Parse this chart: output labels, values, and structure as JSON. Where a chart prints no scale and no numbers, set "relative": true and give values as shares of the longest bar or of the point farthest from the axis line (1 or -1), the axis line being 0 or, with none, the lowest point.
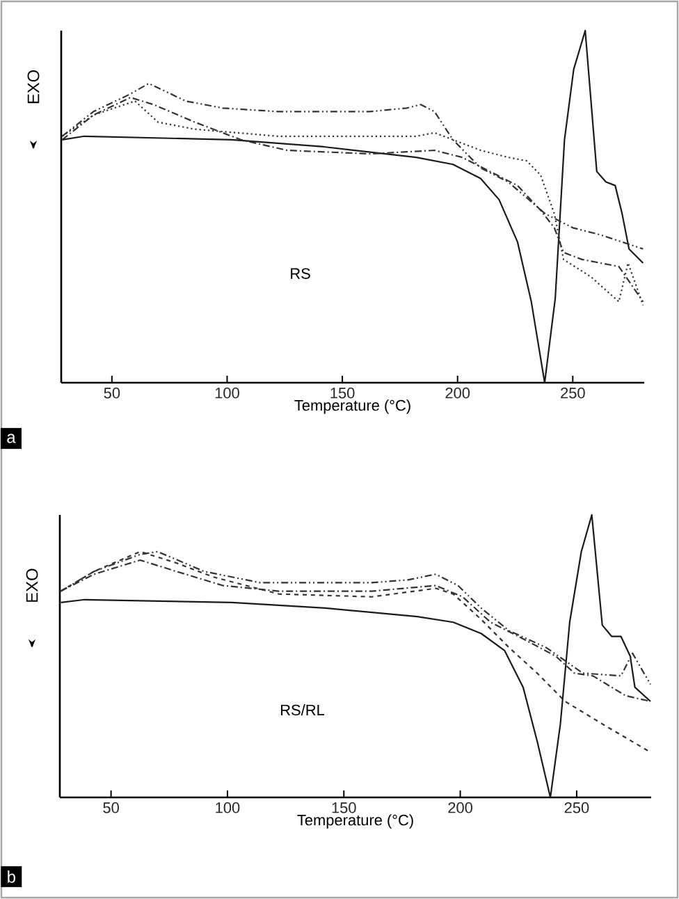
{
  "chart_data": [
    {
      "type": "line",
      "title": "a",
      "xlabel": "Temperature (°C)",
      "ylabel": "EXO",
      "annotations": [
        "RS"
      ],
      "relative": true,
      "xlim": [
        28,
        281
      ],
      "xticks": [
        50,
        100,
        150,
        200,
        250
      ],
      "marker": "none",
      "series": [
        {
          "color": "#1a1a1a",
          "line_style": "solid",
          "x": [
            28.4,
            38,
            102,
            142,
            182,
            198,
            210,
            218,
            226,
            232,
            237.8,
            242.4,
            246.4,
            250.4,
            255.4,
            260.4,
            264.4,
            268.4,
            271.4,
            274.4,
            280.5
          ],
          "values": [
            0.69,
            0.7,
            0.69,
            0.67,
            0.64,
            0.62,
            0.58,
            0.52,
            0.4,
            0.23,
            0,
            0.24,
            0.69,
            0.89,
            1,
            0.6,
            0.57,
            0.56,
            0.48,
            0.38,
            0.34
          ]
        },
        {
          "color": "#333333",
          "line_style": "dashdotdot",
          "x": [
            28.4,
            42,
            58,
            66,
            82,
            98,
            122,
            162,
            178,
            184,
            190,
            198,
            210,
            222,
            238,
            250,
            262,
            280.5
          ],
          "values": [
            0.7,
            0.77,
            0.82,
            0.85,
            0.8,
            0.78,
            0.77,
            0.77,
            0.78,
            0.79,
            0.77,
            0.69,
            0.61,
            0.57,
            0.48,
            0.44,
            0.42,
            0.38
          ]
        },
        {
          "color": "#333333",
          "line_style": "dotted",
          "x": [
            28.4,
            42,
            60,
            70,
            86,
            122,
            162,
            182,
            190,
            198,
            210,
            222,
            230,
            236,
            242,
            246,
            258,
            270,
            274,
            280.5
          ],
          "values": [
            0.7,
            0.76,
            0.8,
            0.74,
            0.72,
            0.7,
            0.7,
            0.7,
            0.71,
            0.69,
            0.66,
            0.64,
            0.63,
            0.59,
            0.48,
            0.35,
            0.3,
            0.23,
            0.34,
            0.22
          ]
        },
        {
          "color": "#333333",
          "line_style": "dashdot",
          "x": [
            28.4,
            42,
            58,
            68,
            86,
            106,
            126,
            162,
            190,
            202,
            214,
            226,
            236,
            242,
            246,
            254,
            270,
            280.5
          ],
          "values": [
            0.69,
            0.76,
            0.81,
            0.79,
            0.74,
            0.69,
            0.66,
            0.65,
            0.66,
            0.64,
            0.6,
            0.56,
            0.49,
            0.44,
            0.37,
            0.35,
            0.33,
            0.23
          ]
        }
      ]
    },
    {
      "type": "line",
      "title": "b",
      "xlabel": "Temperature (°C)",
      "ylabel": "EXO",
      "annotations": [
        "RS/RL"
      ],
      "relative": true,
      "xlim": [
        28,
        282
      ],
      "xticks": [
        50,
        100,
        150,
        200,
        250
      ],
      "marker": "none",
      "series": [
        {
          "color": "#1a1a1a",
          "line_style": "solid",
          "x": [
            28.4,
            38.7,
            102,
            142,
            181.5,
            197,
            209,
            219,
            227,
            233,
            238.7,
            243,
            247,
            252,
            256.5,
            261,
            265,
            269,
            273,
            275,
            281.7
          ],
          "values": [
            0.69,
            0.7,
            0.69,
            0.67,
            0.64,
            0.62,
            0.58,
            0.52,
            0.39,
            0.2,
            0,
            0.26,
            0.62,
            0.87,
            1,
            0.61,
            0.57,
            0.57,
            0.5,
            0.39,
            0.34
          ]
        },
        {
          "color": "#333333",
          "line_style": "dashdotdot",
          "x": [
            28.4,
            42.7,
            62.5,
            70,
            90,
            114,
            162,
            177.6,
            189.5,
            199,
            209,
            221,
            237,
            252.6,
            269,
            274,
            281.7
          ],
          "values": [
            0.73,
            0.8,
            0.86,
            0.87,
            0.8,
            0.76,
            0.76,
            0.77,
            0.79,
            0.75,
            0.67,
            0.59,
            0.53,
            0.44,
            0.43,
            0.51,
            0.4
          ]
        },
        {
          "color": "#333333",
          "line_style": "dashdot",
          "x": [
            28.4,
            42.7,
            62.5,
            78,
            98,
            122,
            162,
            189.5,
            201,
            213,
            225,
            241,
            249,
            257,
            271,
            281.7
          ],
          "values": [
            0.73,
            0.79,
            0.84,
            0.8,
            0.75,
            0.73,
            0.73,
            0.75,
            0.71,
            0.62,
            0.57,
            0.5,
            0.44,
            0.43,
            0.36,
            0.34
          ]
        },
        {
          "color": "#333333",
          "line_style": "dashed",
          "x": [
            28.4,
            42.7,
            62.5,
            78,
            94,
            122,
            162,
            189.5,
            197,
            209,
            221,
            233,
            245,
            261,
            281.7
          ],
          "values": [
            0.73,
            0.8,
            0.87,
            0.83,
            0.78,
            0.72,
            0.71,
            0.74,
            0.72,
            0.63,
            0.53,
            0.44,
            0.34,
            0.26,
            0.16
          ]
        }
      ]
    }
  ]
}
